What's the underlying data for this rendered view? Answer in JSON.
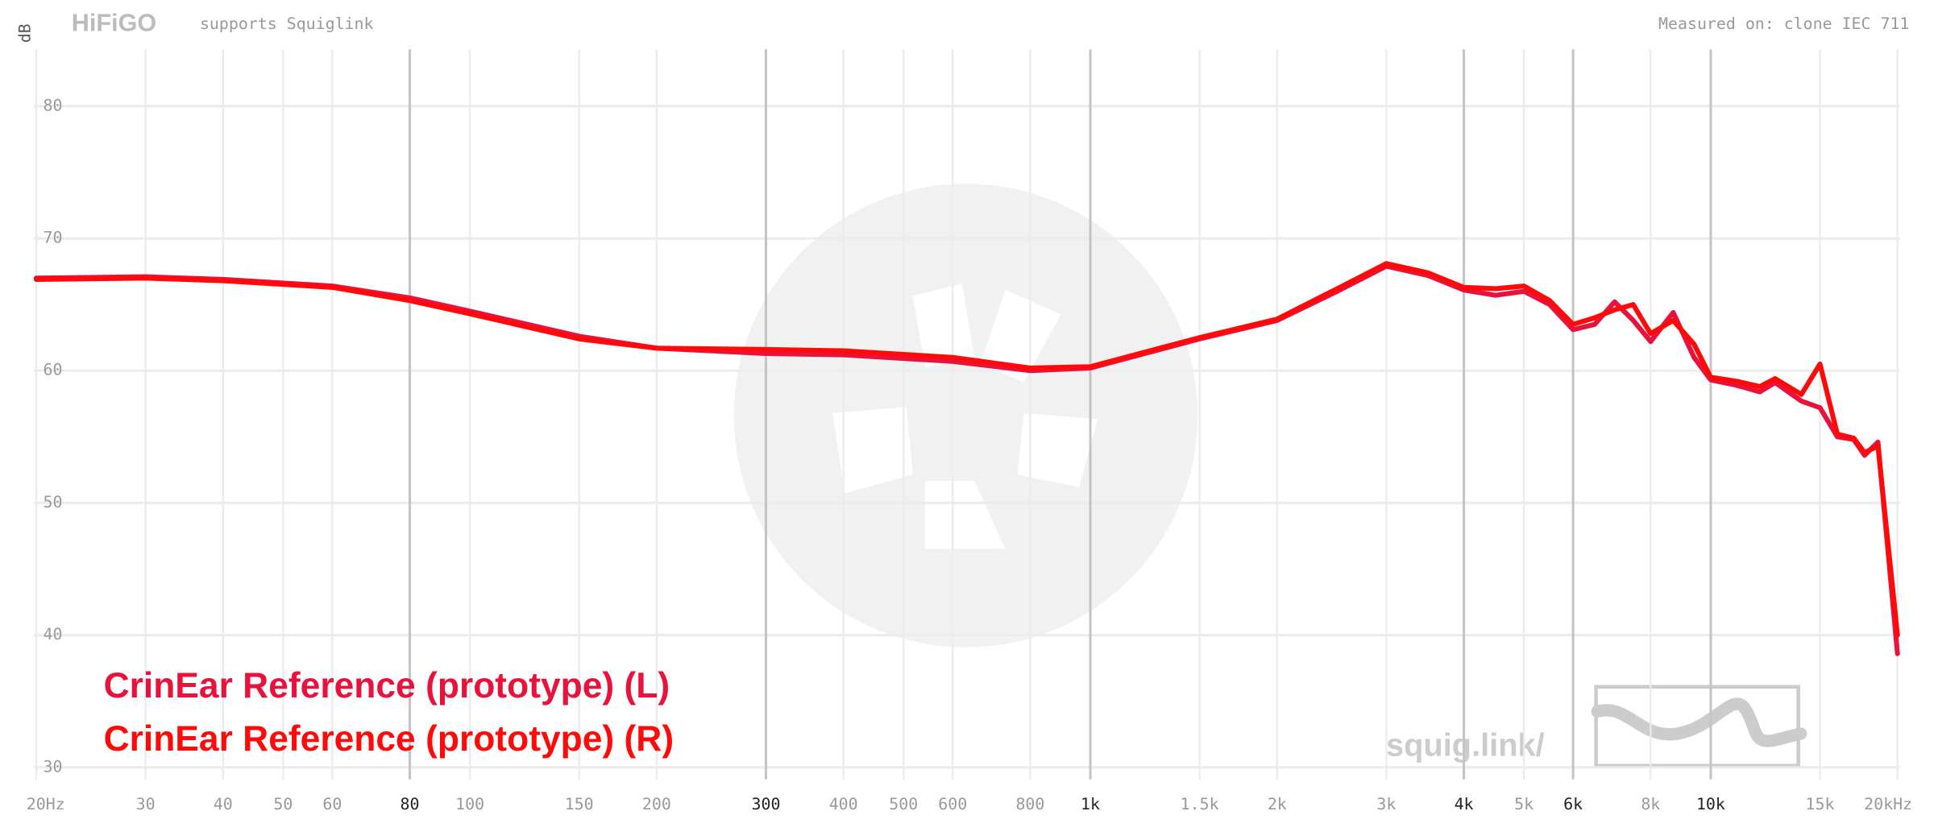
{
  "header": {
    "logo": "HiFiGO",
    "subtitle": "supports Squiglink",
    "measured": "Measured on: clone IEC 711",
    "watermark": "squig.link/"
  },
  "chart_data": {
    "type": "line",
    "y_label": "dB",
    "log_x": true,
    "grid": true,
    "legend": "bottom-left",
    "xlim": [
      20,
      20000
    ],
    "ylim": [
      29.1,
      84.3
    ],
    "xticks": [
      {
        "value": 20,
        "label": "20Hz"
      },
      30,
      40,
      50,
      60,
      {
        "value": 80,
        "label": "80",
        "emphasis": true
      },
      100,
      150,
      200,
      {
        "value": 300,
        "label": "300",
        "emphasis": true
      },
      400,
      500,
      600,
      800,
      {
        "value": 1000,
        "label": "1k",
        "emphasis": true
      },
      {
        "value": 1500,
        "label": "1.5k"
      },
      {
        "value": 2000,
        "label": "2k"
      },
      {
        "value": 3000,
        "label": "3k"
      },
      {
        "value": 4000,
        "label": "4k",
        "emphasis": true
      },
      {
        "value": 5000,
        "label": "5k"
      },
      {
        "value": 6000,
        "label": "6k",
        "emphasis": true
      },
      {
        "value": 8000,
        "label": "8k"
      },
      {
        "value": 10000,
        "label": "10k",
        "emphasis": true
      },
      {
        "value": 15000,
        "label": "15k"
      },
      {
        "value": 20000,
        "label": "20kHz"
      }
    ],
    "yticks": [
      30,
      40,
      50,
      60,
      70,
      80
    ],
    "x": [
      20,
      30,
      40,
      60,
      80,
      100,
      150,
      200,
      300,
      400,
      600,
      800,
      1000,
      1500,
      2000,
      2500,
      3000,
      3500,
      4000,
      4500,
      5000,
      5500,
      6000,
      6500,
      7000,
      7500,
      8000,
      8700,
      9400,
      10000,
      11000,
      12000,
      12700,
      14000,
      15000,
      16000,
      17000,
      17700,
      18600,
      20000
    ],
    "series": [
      {
        "name": "CrinEar Reference (prototype) (L)",
        "color": "#e8123c",
        "values": [
          67.0,
          67.1,
          66.9,
          66.4,
          65.5,
          64.5,
          62.6,
          61.7,
          61.3,
          61.2,
          60.7,
          60.0,
          60.2,
          62.4,
          63.8,
          66.0,
          67.9,
          67.2,
          66.1,
          65.7,
          66.0,
          65.0,
          63.1,
          63.5,
          65.2,
          63.8,
          62.2,
          64.4,
          61.0,
          59.3,
          58.9,
          58.4,
          59.1,
          57.7,
          57.2,
          55.0,
          54.8,
          53.6,
          54.6,
          38.6
        ]
      },
      {
        "name": "CrinEar Reference (prototype) (R)",
        "color": "#ff0a0a",
        "values": [
          66.9,
          67.0,
          66.8,
          66.3,
          65.3,
          64.3,
          62.4,
          61.7,
          61.6,
          61.5,
          61.0,
          60.2,
          60.3,
          62.5,
          63.9,
          66.2,
          68.1,
          67.4,
          66.3,
          66.2,
          66.4,
          65.3,
          63.5,
          64.0,
          64.6,
          65.0,
          62.8,
          63.8,
          62.0,
          59.5,
          59.2,
          58.8,
          59.4,
          58.2,
          60.5,
          55.2,
          54.9,
          53.8,
          54.3,
          40.0
        ]
      }
    ]
  }
}
